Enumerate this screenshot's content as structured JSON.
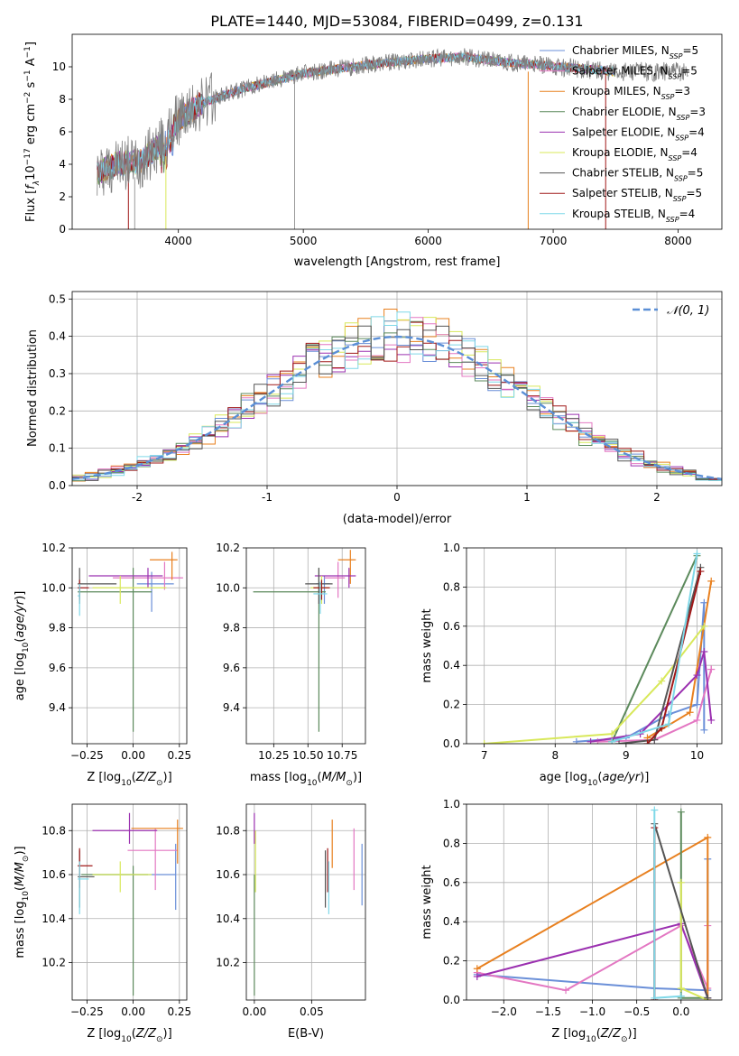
{
  "title": "PLATE=1440, MJD=53084, FIBERID=0499, z=0.131",
  "colors": {
    "Chabrier MILES": "#6a8fd8",
    "Salpeter MILES": "#e377c2",
    "Kroupa MILES": "#e8801f",
    "Chabrier ELODIE": "#5c8a5c",
    "Salpeter ELODIE": "#9b30b0",
    "Kroupa ELODIE": "#d8e85a",
    "Chabrier STELIB": "#555555",
    "Salpeter STELIB": "#a01818",
    "Kroupa STELIB": "#7fd8e8",
    "data": "#808080",
    "gaussian": "#5b8fd6",
    "grid": "#b0b0b0"
  },
  "chart_data": [
    {
      "id": "spectrum",
      "type": "line",
      "xlabel": "wavelength [Angstrom, rest frame]",
      "xlim": [
        3150,
        8350
      ],
      "ylim": [
        0,
        12
      ],
      "xticks": [
        4000,
        5000,
        6000,
        7000,
        8000
      ],
      "yticks": [
        0,
        2,
        4,
        6,
        8,
        10
      ],
      "continuum_x": [
        3350,
        3500,
        3700,
        3900,
        4000,
        4200,
        4500,
        4800,
        5000,
        5300,
        5600,
        6000,
        6300,
        6600,
        6900,
        7200,
        7500
      ],
      "continuum_y": [
        3.5,
        4.0,
        4.2,
        5.5,
        6.8,
        7.8,
        8.6,
        9.2,
        9.6,
        9.9,
        10.2,
        10.5,
        10.6,
        10.3,
        10.1,
        9.9,
        9.7
      ],
      "series": [
        {
          "name": "Chabrier MILES, N_SSP=5",
          "name_main": "Chabrier MILES, N",
          "name_sub": "SSP",
          "name_end": "=5"
        },
        {
          "name": "Salpeter MILES, N_SSP=5",
          "name_main": "Salpeter MILES, N",
          "name_sub": "SSP",
          "name_end": "=5"
        },
        {
          "name": "Kroupa MILES, N_SSP=3",
          "name_main": "Kroupa MILES, N",
          "name_sub": "SSP",
          "name_end": "=3"
        },
        {
          "name": "Chabrier ELODIE, N_SSP=3",
          "name_main": "Chabrier ELODIE, N",
          "name_sub": "SSP",
          "name_end": "=3"
        },
        {
          "name": "Salpeter ELODIE, N_SSP=4",
          "name_main": "Salpeter ELODIE, N",
          "name_sub": "SSP",
          "name_end": "=4"
        },
        {
          "name": "Kroupa ELODIE, N_SSP=4",
          "name_main": "Kroupa ELODIE, N",
          "name_sub": "SSP",
          "name_end": "=4"
        },
        {
          "name": "Chabrier STELIB, N_SSP=5",
          "name_main": "Chabrier STELIB, N",
          "name_sub": "SSP",
          "name_end": "=5"
        },
        {
          "name": "Salpeter STELIB, N_SSP=5",
          "name_main": "Salpeter STELIB, N",
          "name_sub": "SSP",
          "name_end": "=5"
        },
        {
          "name": "Kroupa STELIB, N_SSP=4",
          "name_main": "Kroupa STELIB, N",
          "name_sub": "SSP",
          "name_end": "=4"
        }
      ],
      "legend_position": "upper right"
    },
    {
      "id": "residuals",
      "type": "line",
      "xlabel": "(data-model)/error",
      "ylabel": "Normed distribution",
      "xlim": [
        -2.5,
        2.5
      ],
      "ylim": [
        0,
        0.52
      ],
      "xticks": [
        -2,
        -1,
        0,
        1,
        2
      ],
      "yticks": [
        0.0,
        0.1,
        0.2,
        0.3,
        0.4,
        0.5
      ],
      "gaussian": {
        "mean": 0,
        "sigma": 1,
        "label": "𝒩(0, 1)"
      },
      "histogram_bin_width": 0.1,
      "legend_position": "upper right"
    },
    {
      "id": "age_vs_Z",
      "type": "scatter",
      "xlabel": "Z [log10(Z/Z⊙)]",
      "ylabel": "age [log10(age/yr)]",
      "xlim": [
        -0.33,
        0.29
      ],
      "ylim": [
        9.22,
        10.2
      ],
      "xticks": [
        -0.25,
        0,
        0.25
      ],
      "xticklabels": [
        "−0.25",
        "0.00",
        "0.25"
      ],
      "yticks": [
        9.4,
        9.6,
        9.8,
        10.0,
        10.2
      ],
      "points": [
        {
          "series": "Chabrier MILES",
          "x": 0.1,
          "y": 10.02,
          "xerr": [
            0.08,
            0.12
          ],
          "yerr": [
            0.14,
            0.06
          ]
        },
        {
          "series": "Salpeter MILES",
          "x": 0.17,
          "y": 10.05,
          "xerr": [
            0.28,
            0.1
          ],
          "yerr": [
            0.06,
            0.08
          ]
        },
        {
          "series": "Kroupa MILES",
          "x": 0.21,
          "y": 10.14,
          "xerr": [
            0.12,
            0.03
          ],
          "yerr": [
            0.1,
            0.04
          ]
        },
        {
          "series": "Chabrier ELODIE",
          "x": 0.0,
          "y": 9.98,
          "xerr": [
            0.3,
            0.1
          ],
          "yerr": [
            0.7,
            0.12
          ]
        },
        {
          "series": "Salpeter ELODIE",
          "x": 0.08,
          "y": 10.06,
          "xerr": [
            0.32,
            0.08
          ],
          "yerr": [
            0.06,
            0.04
          ]
        },
        {
          "series": "Kroupa ELODIE",
          "x": -0.07,
          "y": 10.0,
          "xerr": [
            0.15,
            0.25
          ],
          "yerr": [
            0.08,
            0.06
          ]
        },
        {
          "series": "Chabrier STELIB",
          "x": -0.29,
          "y": 10.02,
          "xerr": [
            0.01,
            0.2
          ],
          "yerr": [
            0.1,
            0.08
          ]
        },
        {
          "series": "Salpeter STELIB",
          "x": -0.29,
          "y": 10.0,
          "xerr": [
            0.01,
            0.05
          ],
          "yerr": [
            0.06,
            0.04
          ]
        },
        {
          "series": "Kroupa STELIB",
          "x": -0.29,
          "y": 9.96,
          "xerr": [
            0.01,
            0.0
          ],
          "yerr": [
            0.1,
            0.06
          ]
        }
      ]
    },
    {
      "id": "age_vs_mass",
      "type": "scatter",
      "xlabel": "mass [log10(M/M⊙)]",
      "xlim": [
        10.05,
        10.92
      ],
      "ylim": [
        9.22,
        10.2
      ],
      "xticks": [
        10.25,
        10.5,
        10.75
      ],
      "xticklabels": [
        "10.25",
        "10.50",
        "10.75"
      ],
      "yticks": [
        9.4,
        9.6,
        9.8,
        10.0,
        10.2
      ],
      "points": [
        {
          "series": "Chabrier MILES",
          "x": 10.62,
          "y": 10.02,
          "xerr": [
            0.06,
            0.04
          ],
          "yerr": [
            0.1,
            0.04
          ]
        },
        {
          "series": "Salpeter MILES",
          "x": 10.72,
          "y": 10.05,
          "xerr": [
            0.1,
            0.05
          ],
          "yerr": [
            0.1,
            0.08
          ]
        },
        {
          "series": "Kroupa MILES",
          "x": 10.81,
          "y": 10.14,
          "xerr": [
            0.09,
            0.04
          ],
          "yerr": [
            0.12,
            0.05
          ]
        },
        {
          "series": "Chabrier ELODIE",
          "x": 10.58,
          "y": 9.98,
          "xerr": [
            0.48,
            0.05
          ],
          "yerr": [
            0.7,
            0.12
          ]
        },
        {
          "series": "Salpeter ELODIE",
          "x": 10.8,
          "y": 10.06,
          "xerr": [
            0.25,
            0.05
          ],
          "yerr": [
            0.06,
            0.04
          ]
        },
        {
          "series": "Kroupa ELODIE",
          "x": 10.6,
          "y": 10.0,
          "xerr": [
            0.08,
            0.05
          ],
          "yerr": [
            0.08,
            0.06
          ]
        },
        {
          "series": "Chabrier STELIB",
          "x": 10.58,
          "y": 10.02,
          "xerr": [
            0.1,
            0.1
          ],
          "yerr": [
            0.1,
            0.08
          ]
        },
        {
          "series": "Salpeter STELIB",
          "x": 10.6,
          "y": 10.0,
          "xerr": [
            0.06,
            0.06
          ],
          "yerr": [
            0.06,
            0.04
          ]
        },
        {
          "series": "Kroupa STELIB",
          "x": 10.59,
          "y": 9.97,
          "xerr": [
            0.05,
            0.05
          ],
          "yerr": [
            0.1,
            0.06
          ]
        }
      ]
    },
    {
      "id": "weight_vs_age",
      "type": "line",
      "xlabel": "age [log10(age/yr)]",
      "ylabel": "mass weight",
      "xlim": [
        6.75,
        10.35
      ],
      "ylim": [
        0,
        1
      ],
      "xticks": [
        7,
        8,
        9,
        10
      ],
      "yticks": [
        0.0,
        0.2,
        0.4,
        0.6,
        0.8,
        1.0
      ],
      "series": [
        {
          "name": "Chabrier MILES",
          "x": [
            8.3,
            9.0,
            9.6,
            10.0,
            10.1,
            10.1
          ],
          "y": [
            0.01,
            0.03,
            0.15,
            0.2,
            0.72,
            0.07
          ]
        },
        {
          "name": "Salpeter MILES",
          "x": [
            8.6,
            9.4,
            10.0,
            10.2,
            10.2
          ],
          "y": [
            0.01,
            0.02,
            0.12,
            0.38,
            0.38
          ]
        },
        {
          "name": "Kroupa MILES",
          "x": [
            9.3,
            9.9,
            10.2
          ],
          "y": [
            0.03,
            0.16,
            0.83
          ]
        },
        {
          "name": "Chabrier ELODIE",
          "x": [
            8.8,
            10.0
          ],
          "y": [
            0.01,
            0.96
          ]
        },
        {
          "name": "Salpeter ELODIE",
          "x": [
            8.5,
            9.2,
            10.0,
            10.1,
            10.2
          ],
          "y": [
            0.01,
            0.05,
            0.35,
            0.47,
            0.12
          ]
        },
        {
          "name": "Kroupa ELODIE",
          "x": [
            7.0,
            8.8,
            9.5,
            10.1
          ],
          "y": [
            0.0,
            0.05,
            0.32,
            0.6
          ]
        },
        {
          "name": "Chabrier STELIB",
          "x": [
            8.9,
            9.4,
            10.05
          ],
          "y": [
            0.0,
            0.02,
            0.9
          ]
        },
        {
          "name": "Salpeter STELIB",
          "x": [
            9.3,
            9.5,
            10.05
          ],
          "y": [
            0.0,
            0.08,
            0.88
          ]
        },
        {
          "name": "Kroupa STELIB",
          "x": [
            8.8,
            9.6,
            10.0
          ],
          "y": [
            0.01,
            0.1,
            0.97
          ]
        }
      ]
    },
    {
      "id": "mass_vs_Z",
      "type": "scatter",
      "xlabel": "Z [log10(Z/Z⊙)]",
      "ylabel": "mass [log10(M/M⊙)]",
      "xlim": [
        -0.33,
        0.29
      ],
      "ylim": [
        10.03,
        10.92
      ],
      "xticks": [
        -0.25,
        0,
        0.25
      ],
      "xticklabels": [
        "−0.25",
        "0.00",
        "0.25"
      ],
      "yticks": [
        10.2,
        10.4,
        10.6,
        10.8
      ],
      "points": [
        {
          "series": "Chabrier MILES",
          "x": 0.23,
          "y": 10.6,
          "xerr": [
            0.45,
            0.0
          ],
          "yerr": [
            0.16,
            0.14
          ]
        },
        {
          "series": "Salpeter MILES",
          "x": 0.12,
          "y": 10.71,
          "xerr": [
            0.15,
            0.12
          ],
          "yerr": [
            0.18,
            0.1
          ]
        },
        {
          "series": "Kroupa MILES",
          "x": 0.24,
          "y": 10.81,
          "xerr": [
            0.25,
            0.03
          ],
          "yerr": [
            0.16,
            0.04
          ]
        },
        {
          "series": "Chabrier ELODIE",
          "x": 0.0,
          "y": 10.6,
          "xerr": [
            0.28,
            0.08
          ],
          "yerr": [
            0.55,
            0.04
          ]
        },
        {
          "series": "Salpeter ELODIE",
          "x": -0.02,
          "y": 10.8,
          "xerr": [
            0.2,
            0.15
          ],
          "yerr": [
            0.06,
            0.08
          ]
        },
        {
          "series": "Kroupa ELODIE",
          "x": -0.07,
          "y": 10.6,
          "xerr": [
            0.15,
            0.17
          ],
          "yerr": [
            0.08,
            0.06
          ]
        },
        {
          "series": "Chabrier STELIB",
          "x": -0.29,
          "y": 10.59,
          "xerr": [
            0.01,
            0.08
          ],
          "yerr": [
            0.14,
            0.12
          ]
        },
        {
          "series": "Salpeter STELIB",
          "x": -0.29,
          "y": 10.64,
          "xerr": [
            0.01,
            0.07
          ],
          "yerr": [
            0.1,
            0.08
          ]
        },
        {
          "series": "Kroupa STELIB",
          "x": -0.29,
          "y": 10.58,
          "xerr": [
            0.01,
            0.05
          ],
          "yerr": [
            0.16,
            0.08
          ]
        }
      ]
    },
    {
      "id": "mass_vs_EBV",
      "type": "scatter",
      "xlabel": "E(B-V)",
      "xlim": [
        -0.007,
        0.097
      ],
      "ylim": [
        10.03,
        10.92
      ],
      "xticks": [
        0,
        0.05
      ],
      "xticklabels": [
        "0.00",
        "0.05"
      ],
      "yticks": [
        10.2,
        10.4,
        10.6,
        10.8
      ],
      "points": [
        {
          "series": "Chabrier MILES",
          "x": 0.094,
          "y": 10.6,
          "xerr": [
            0,
            0
          ],
          "yerr": [
            0.14,
            0.14
          ]
        },
        {
          "series": "Salpeter MILES",
          "x": 0.087,
          "y": 10.71,
          "xerr": [
            0,
            0
          ],
          "yerr": [
            0.18,
            0.1
          ]
        },
        {
          "series": "Kroupa MILES",
          "x": 0.068,
          "y": 10.8,
          "xerr": [
            0,
            0
          ],
          "yerr": [
            0.17,
            0.05
          ]
        },
        {
          "series": "Chabrier ELODIE",
          "x": 0.0,
          "y": 10.45,
          "xerr": [
            0,
            0
          ],
          "yerr": [
            0.4,
            0.15
          ]
        },
        {
          "series": "Salpeter ELODIE",
          "x": 0.0,
          "y": 10.8,
          "xerr": [
            0,
            0
          ],
          "yerr": [
            0.06,
            0.08
          ]
        },
        {
          "series": "Kroupa ELODIE",
          "x": 0.001,
          "y": 10.6,
          "xerr": [
            0,
            0
          ],
          "yerr": [
            0.08,
            0.2
          ]
        },
        {
          "series": "Chabrier STELIB",
          "x": 0.062,
          "y": 10.59,
          "xerr": [
            0,
            0
          ],
          "yerr": [
            0.14,
            0.12
          ]
        },
        {
          "series": "Salpeter STELIB",
          "x": 0.064,
          "y": 10.62,
          "xerr": [
            0,
            0
          ],
          "yerr": [
            0.1,
            0.1
          ]
        },
        {
          "series": "Kroupa STELIB",
          "x": 0.065,
          "y": 10.58,
          "xerr": [
            0,
            0
          ],
          "yerr": [
            0.16,
            0.08
          ]
        }
      ]
    },
    {
      "id": "weight_vs_Z",
      "type": "line",
      "xlabel": "Z [log10(Z/Z⊙)]",
      "ylabel": "mass weight",
      "xlim": [
        -2.42,
        0.46
      ],
      "ylim": [
        0,
        1
      ],
      "xticks": [
        -2.0,
        -1.5,
        -1.0,
        -0.5,
        0.0
      ],
      "xticklabels": [
        "−2.0",
        "−1.5",
        "−1.0",
        "−0.5",
        "0.0"
      ],
      "yticks": [
        0.0,
        0.2,
        0.4,
        0.6,
        0.8,
        1.0
      ],
      "series": [
        {
          "name": "Chabrier MILES",
          "x": [
            -2.3,
            -0.3,
            0.3,
            0.3
          ],
          "y": [
            0.13,
            0.06,
            0.05,
            0.72
          ]
        },
        {
          "name": "Salpeter MILES",
          "x": [
            -2.3,
            -1.3,
            0.0,
            0.3,
            0.3
          ],
          "y": [
            0.14,
            0.05,
            0.38,
            0.06,
            0.38
          ]
        },
        {
          "name": "Kroupa MILES",
          "x": [
            -2.3,
            0.3,
            0.3
          ],
          "y": [
            0.16,
            0.83,
            0.0
          ]
        },
        {
          "name": "Chabrier ELODIE",
          "x": [
            0.0,
            0.0,
            0.3
          ],
          "y": [
            0.96,
            0.01,
            0.01
          ]
        },
        {
          "name": "Salpeter ELODIE",
          "x": [
            -2.3,
            0.0,
            0.3
          ],
          "y": [
            0.12,
            0.39,
            0.01
          ]
        },
        {
          "name": "Kroupa ELODIE",
          "x": [
            0.0,
            0.0,
            0.3
          ],
          "y": [
            0.6,
            0.06,
            0.0
          ]
        },
        {
          "name": "Chabrier STELIB",
          "x": [
            -0.3,
            -0.3,
            0.3
          ],
          "y": [
            0.0,
            0.9,
            0.01
          ]
        },
        {
          "name": "Salpeter STELIB",
          "x": [
            -0.3,
            -0.3
          ],
          "y": [
            0.0,
            0.88
          ]
        },
        {
          "name": "Kroupa STELIB",
          "x": [
            -0.3,
            -0.3,
            0.0
          ],
          "y": [
            0.97,
            0.01,
            0.02
          ]
        }
      ]
    }
  ]
}
